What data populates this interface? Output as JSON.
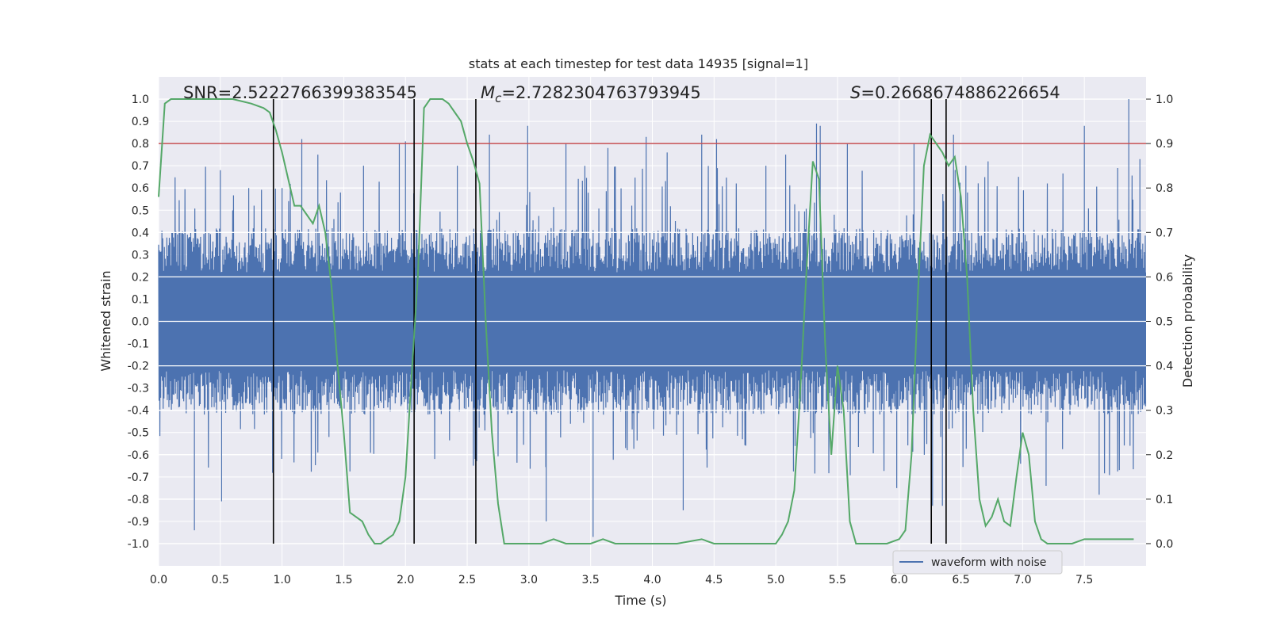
{
  "chart_data": {
    "type": "line",
    "title": "stats at each timestep for test data 14935 [signal=1]",
    "xlabel": "Time (s)",
    "ylabel_left": "Whitened strain",
    "ylabel_right": "Detection probability",
    "xlim": [
      0.0,
      8.0
    ],
    "ylim_left": [
      -1.1,
      1.1
    ],
    "ylim_right": [
      -0.05,
      1.05
    ],
    "x_ticks": [
      "0.0",
      "0.5",
      "1.0",
      "1.5",
      "2.0",
      "2.5",
      "3.0",
      "3.5",
      "4.0",
      "4.5",
      "5.0",
      "5.5",
      "6.0",
      "6.5",
      "7.0",
      "7.5"
    ],
    "y_ticks_left": [
      "1.0",
      "0.9",
      "0.8",
      "0.7",
      "0.6",
      "0.5",
      "0.4",
      "0.3",
      "0.2",
      "0.1",
      "0.0",
      "-0.1",
      "-0.2",
      "-0.3",
      "-0.4",
      "-0.5",
      "-0.6",
      "-0.7",
      "-0.8",
      "-0.9",
      "-1.0"
    ],
    "y_ticks_right": [
      "1.0",
      "0.9",
      "0.8",
      "0.7",
      "0.6",
      "0.5",
      "0.4",
      "0.3",
      "0.2",
      "0.1",
      "0.0"
    ],
    "grid": true,
    "legend_position": "lower-right",
    "annotations": {
      "snr": "SNR=2.5222766399383545",
      "mc_symbol": "M",
      "mc_sub": "c",
      "mc_value": "=2.7282304763793945",
      "s_symbol": "S",
      "s_value": "=0.2668674886226654"
    },
    "series": [
      {
        "name": "waveform with noise",
        "color": "#4c72b0",
        "axis": "left",
        "note_style": "dense noise band",
        "band_upper_typical": 0.4,
        "band_lower_typical": -0.4,
        "spike_samples": [
          [
            0.29,
            -0.94
          ],
          [
            0.5,
            0.68
          ],
          [
            0.51,
            -0.81
          ],
          [
            0.73,
            0.6
          ],
          [
            1.0,
            0.6
          ],
          [
            1.16,
            0.82
          ],
          [
            1.29,
            0.75
          ],
          [
            1.38,
            -0.52
          ],
          [
            1.66,
            0.7
          ],
          [
            1.95,
            0.8
          ],
          [
            2.0,
            0.81
          ],
          [
            2.42,
            0.7
          ],
          [
            2.68,
            0.84
          ],
          [
            2.99,
            0.88
          ],
          [
            3.14,
            -0.9
          ],
          [
            3.3,
            0.8
          ],
          [
            3.52,
            -0.97
          ],
          [
            3.64,
            0.78
          ],
          [
            3.95,
            0.83
          ],
          [
            4.12,
            0.76
          ],
          [
            4.25,
            -0.85
          ],
          [
            4.4,
            0.84
          ],
          [
            4.52,
            0.82
          ],
          [
            4.92,
            0.7
          ],
          [
            5.08,
            0.75
          ],
          [
            5.33,
            0.89
          ],
          [
            5.36,
            0.88
          ],
          [
            5.58,
            0.8
          ],
          [
            5.98,
            -0.75
          ],
          [
            6.12,
            0.8
          ],
          [
            6.27,
            -0.83
          ],
          [
            6.35,
            -0.83
          ],
          [
            6.44,
            0.84
          ],
          [
            6.54,
            0.7
          ],
          [
            6.72,
            0.72
          ],
          [
            7.19,
            -0.74
          ],
          [
            7.5,
            0.88
          ],
          [
            7.62,
            -0.78
          ],
          [
            7.77,
            0.69
          ],
          [
            7.86,
            1.0
          ],
          [
            7.87,
            -0.56
          ],
          [
            7.95,
            0.73
          ]
        ]
      },
      {
        "name": "",
        "color": "#55a868",
        "axis": "right",
        "x": [
          0.0,
          0.05,
          0.1,
          0.2,
          0.4,
          0.6,
          0.75,
          0.85,
          0.9,
          0.95,
          1.0,
          1.05,
          1.1,
          1.15,
          1.2,
          1.25,
          1.3,
          1.35,
          1.4,
          1.45,
          1.5,
          1.55,
          1.6,
          1.65,
          1.7,
          1.75,
          1.8,
          1.85,
          1.9,
          1.95,
          2.0,
          2.05,
          2.1,
          2.15,
          2.2,
          2.3,
          2.35,
          2.4,
          2.45,
          2.5,
          2.55,
          2.6,
          2.65,
          2.7,
          2.75,
          2.8,
          2.9,
          3.0,
          3.1,
          3.2,
          3.3,
          3.4,
          3.5,
          3.6,
          3.7,
          3.8,
          4.0,
          4.2,
          4.4,
          4.5,
          4.6,
          4.8,
          5.0,
          5.05,
          5.1,
          5.15,
          5.2,
          5.25,
          5.3,
          5.35,
          5.4,
          5.45,
          5.5,
          5.55,
          5.6,
          5.65,
          5.7,
          5.75,
          5.8,
          5.9,
          6.0,
          6.05,
          6.1,
          6.15,
          6.2,
          6.25,
          6.3,
          6.35,
          6.4,
          6.45,
          6.5,
          6.55,
          6.6,
          6.65,
          6.7,
          6.75,
          6.8,
          6.85,
          6.9,
          6.95,
          7.0,
          7.05,
          7.1,
          7.15,
          7.2,
          7.25,
          7.3,
          7.4,
          7.5,
          7.6,
          7.7,
          7.8,
          7.9
        ],
        "values": [
          0.78,
          0.99,
          1.0,
          1.0,
          1.0,
          1.0,
          0.99,
          0.98,
          0.97,
          0.93,
          0.88,
          0.82,
          0.76,
          0.76,
          0.74,
          0.72,
          0.76,
          0.7,
          0.58,
          0.4,
          0.25,
          0.07,
          0.06,
          0.05,
          0.02,
          0.0,
          0.0,
          0.01,
          0.02,
          0.05,
          0.15,
          0.38,
          0.6,
          0.98,
          1.0,
          1.0,
          0.99,
          0.97,
          0.95,
          0.9,
          0.86,
          0.81,
          0.5,
          0.25,
          0.09,
          0.0,
          0.0,
          0.0,
          0.0,
          0.01,
          0.0,
          0.0,
          0.0,
          0.01,
          0.0,
          0.0,
          0.0,
          0.0,
          0.01,
          0.0,
          0.0,
          0.0,
          0.0,
          0.02,
          0.05,
          0.12,
          0.35,
          0.62,
          0.86,
          0.82,
          0.45,
          0.2,
          0.4,
          0.3,
          0.05,
          0.0,
          0.0,
          0.0,
          0.0,
          0.0,
          0.01,
          0.03,
          0.2,
          0.55,
          0.85,
          0.92,
          0.9,
          0.88,
          0.85,
          0.87,
          0.78,
          0.6,
          0.3,
          0.1,
          0.04,
          0.06,
          0.1,
          0.05,
          0.04,
          0.15,
          0.25,
          0.2,
          0.05,
          0.01,
          0.0,
          0.0,
          0.0,
          0.0,
          0.01,
          0.01,
          0.01,
          0.01,
          0.01
        ]
      }
    ],
    "threshold_line": {
      "axis": "right",
      "value": 0.9,
      "color": "#c44e52"
    },
    "event_lines_x": [
      0.93,
      2.07,
      2.57,
      6.26,
      6.38
    ]
  }
}
